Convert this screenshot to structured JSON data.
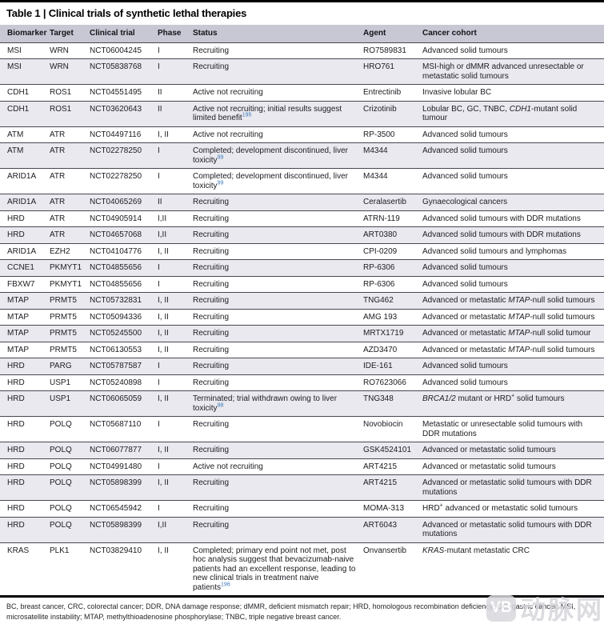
{
  "title": "Table 1 | Clinical trials of synthetic lethal therapies",
  "colors": {
    "header_bg": "#c7c8d3",
    "shaded_row_bg": "#e9e9ef",
    "rule": "#484852",
    "reference_link": "#3b76b8",
    "text": "#1c1c22"
  },
  "watermark": {
    "logo": "VB",
    "text": "动脉网"
  },
  "table": {
    "columns": [
      {
        "key": "biomarker",
        "label": "Biomarker"
      },
      {
        "key": "target",
        "label": "Target"
      },
      {
        "key": "trial",
        "label": "Clinical trial"
      },
      {
        "key": "phase",
        "label": "Phase"
      },
      {
        "key": "status",
        "label": "Status"
      },
      {
        "key": "agent",
        "label": "Agent"
      },
      {
        "key": "cohort",
        "label": "Cancer cohort"
      }
    ],
    "rows": [
      {
        "cells": [
          "MSI",
          "WRN",
          "NCT06004245",
          "I",
          "Recruiting",
          "RO7589831",
          "Advanced solid tumours"
        ]
      },
      {
        "cells": [
          "MSI",
          "WRN",
          "NCT05838768",
          "I",
          "Recruiting",
          "HRO761",
          "MSI-high or dMMR advanced unresectable or metastatic solid tumours"
        ]
      },
      {
        "cells": [
          "CDH1",
          "ROS1",
          "NCT04551495",
          "II",
          "Active not recruiting",
          "Entrectinib",
          "Invasive lobular BC"
        ]
      },
      {
        "cells": [
          "CDH1",
          "ROS1",
          "NCT03620643",
          "II",
          [
            {
              "t": "Active not recruiting; initial results suggest limited benefit"
            },
            {
              "t": "195",
              "sup": true,
              "ref": true
            }
          ],
          "Crizotinib",
          [
            {
              "t": "Lobular BC, GC, TNBC, "
            },
            {
              "t": "CDH1",
              "i": true
            },
            {
              "t": "-mutant solid tumour"
            }
          ]
        ]
      },
      {
        "cells": [
          "ATM",
          "ATR",
          "NCT04497116",
          "I, II",
          "Active not recruiting",
          "RP-3500",
          "Advanced solid tumours"
        ]
      },
      {
        "cells": [
          "ATM",
          "ATR",
          "NCT02278250",
          "I",
          [
            {
              "t": "Completed; development discontinued, liver toxicity"
            },
            {
              "t": "99",
              "sup": true,
              "ref": true
            }
          ],
          "M4344",
          "Advanced solid tumours"
        ]
      },
      {
        "cells": [
          "ARID1A",
          "ATR",
          "NCT02278250",
          "I",
          [
            {
              "t": "Completed; development discontinued, liver toxicity"
            },
            {
              "t": "99",
              "sup": true,
              "ref": true
            }
          ],
          "M4344",
          "Advanced solid tumours"
        ]
      },
      {
        "cells": [
          "ARID1A",
          "ATR",
          "NCT04065269",
          "II",
          "Recruiting",
          "Ceralasertib",
          "Gynaecological cancers"
        ]
      },
      {
        "cells": [
          "HRD",
          "ATR",
          "NCT04905914",
          "I,II",
          "Recruiting",
          "ATRN-119",
          "Advanced solid tumours with DDR mutations"
        ]
      },
      {
        "cells": [
          "HRD",
          "ATR",
          "NCT04657068",
          "I,II",
          "Recruiting",
          "ART0380",
          "Advanced solid tumours with DDR mutations"
        ]
      },
      {
        "cells": [
          "ARID1A",
          "EZH2",
          "NCT04104776",
          "I, II",
          "Recruiting",
          "CPI-0209",
          "Advanced solid tumours and lymphomas"
        ]
      },
      {
        "cells": [
          "CCNE1",
          "PKMYT1",
          "NCT04855656",
          "I",
          "Recruiting",
          "RP-6306",
          "Advanced solid tumours"
        ]
      },
      {
        "cells": [
          "FBXW7",
          "PKMYT1",
          "NCT04855656",
          "I",
          "Recruiting",
          "RP-6306",
          "Advanced solid tumours"
        ]
      },
      {
        "cells": [
          "MTAP",
          "PRMT5",
          "NCT05732831",
          "I, II",
          "Recruiting",
          "TNG462",
          [
            {
              "t": "Advanced or metastatic "
            },
            {
              "t": "MTAP",
              "i": true
            },
            {
              "t": "-null solid tumours"
            }
          ]
        ]
      },
      {
        "cells": [
          "MTAP",
          "PRMT5",
          "NCT05094336",
          "I, II",
          "Recruiting",
          "AMG 193",
          [
            {
              "t": "Advanced or metastatic "
            },
            {
              "t": "MTAP",
              "i": true
            },
            {
              "t": "-null solid tumours"
            }
          ]
        ]
      },
      {
        "cells": [
          "MTAP",
          "PRMT5",
          "NCT05245500",
          "I, II",
          "Recruiting",
          "MRTX1719",
          [
            {
              "t": "Advanced or metastatic "
            },
            {
              "t": "MTAP",
              "i": true
            },
            {
              "t": "-null solid tumour"
            }
          ]
        ]
      },
      {
        "cells": [
          "MTAP",
          "PRMT5",
          "NCT06130553",
          "I, II",
          "Recruiting",
          "AZD3470",
          [
            {
              "t": "Advanced or metastatic "
            },
            {
              "t": "MTAP",
              "i": true
            },
            {
              "t": "-null solid tumours"
            }
          ]
        ]
      },
      {
        "cells": [
          "HRD",
          "PARG",
          "NCT05787587",
          "I",
          "Recruiting",
          "IDE-161",
          "Advanced solid tumours"
        ]
      },
      {
        "cells": [
          "HRD",
          "USP1",
          "NCT05240898",
          "I",
          "Recruiting",
          "RO7623066",
          "Advanced solid tumours"
        ]
      },
      {
        "cells": [
          "HRD",
          "USP1",
          "NCT06065059",
          "I, II",
          [
            {
              "t": "Terminated; trial withdrawn owing to liver toxicity"
            },
            {
              "t": "98",
              "sup": true,
              "ref": true
            }
          ],
          "TNG348",
          [
            {
              "t": "BRCA1/2",
              "i": true
            },
            {
              "t": " mutant or HRD"
            },
            {
              "t": "+",
              "sup": true
            },
            {
              "t": " solid tumours"
            }
          ]
        ]
      },
      {
        "cells": [
          "HRD",
          "POLQ",
          "NCT05687110",
          "I",
          "Recruiting",
          "Novobiocin",
          "Metastatic or unresectable solid tumours with DDR mutations"
        ]
      },
      {
        "cells": [
          "HRD",
          "POLQ",
          "NCT06077877",
          "I, II",
          "Recruiting",
          "GSK4524101",
          "Advanced or metastatic solid tumours"
        ]
      },
      {
        "cells": [
          "HRD",
          "POLQ",
          "NCT04991480",
          "I",
          "Active not recruiting",
          "ART4215",
          "Advanced or metastatic solid tumours"
        ]
      },
      {
        "cells": [
          "HRD",
          "POLQ",
          "NCT05898399",
          "I, II",
          "Recruiting",
          "ART4215",
          "Advanced or metastatic solid tumours with DDR mutations"
        ]
      },
      {
        "cells": [
          "HRD",
          "POLQ",
          "NCT06545942",
          "I",
          "Recruiting",
          "MOMA-313",
          [
            {
              "t": "HRD"
            },
            {
              "t": "+",
              "sup": true
            },
            {
              "t": " advanced or metastatic solid tumours"
            }
          ]
        ]
      },
      {
        "cells": [
          "HRD",
          "POLQ",
          "NCT05898399",
          "I,II",
          "Recruiting",
          "ART6043",
          "Advanced or metastatic solid tumours with DDR mutations"
        ]
      },
      {
        "cells": [
          "KRAS",
          "PLK1",
          "NCT03829410",
          "I, II",
          [
            {
              "t": "Completed; primary end point not met, post hoc analysis suggest that bevacizumab-naive patients had an excellent response, leading to new clinical trials in treatment naive patients"
            },
            {
              "t": "196",
              "sup": true,
              "ref": true
            }
          ],
          "Onvansertib",
          [
            {
              "t": "KRAS",
              "i": true
            },
            {
              "t": "-mutant metastatic CRC"
            }
          ]
        ]
      }
    ]
  },
  "footnote": "BC, breast cancer, CRC, colorectal cancer; DDR, DNA damage response; dMMR, deficient mismatch repair; HRD, homologous recombination deficiency; GC, gastric cancer; MSI, microsatellite instability; MTAP, methylthioadenosine phosphorylase; TNBC, triple negative breast cancer."
}
